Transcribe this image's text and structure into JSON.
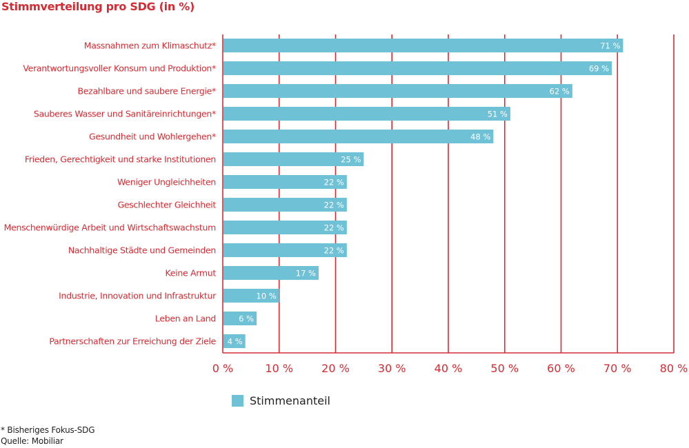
{
  "chart_data": {
    "type": "bar",
    "orientation": "horizontal",
    "title": "Stimmverteilung pro SDG (in %)",
    "categories": [
      "Massnahmen zum Klimaschutz*",
      "Verantwortungsvoller Konsum und Produktion*",
      "Bezahlbare und saubere Energie*",
      "Sauberes Wasser und Sanitäreinrichtungen*",
      "Gesundheit und Wohlergehen*",
      "Frieden, Gerechtigkeit und starke Institutionen",
      "Weniger Ungleichheiten",
      "Geschlechter Gleichheit",
      "Menschenwürdige Arbeit und Wirtschaftswachstum",
      "Nachhaltige Städte und Gemeinden",
      "Keine Armut",
      "Industrie, Innovation und Infrastruktur",
      "Leben an Land",
      "Partnerschaften zur Erreichung der Ziele"
    ],
    "series": [
      {
        "name": "Stimmenanteil",
        "values": [
          71,
          69,
          62,
          51,
          48,
          25,
          22,
          22,
          22,
          22,
          17,
          10,
          6,
          4
        ],
        "color": "#6fc1d6"
      }
    ],
    "data_labels": [
      "71 %",
      "69 %",
      "62 %",
      "51 %",
      "48 %",
      "25 %",
      "22 %",
      "22 %",
      "22 %",
      "22 %",
      "17 %",
      "10 %",
      "6 %",
      "4 %"
    ],
    "xlim": [
      0,
      80
    ],
    "x_ticks": [
      "0 %",
      "10 %",
      "20 %",
      "30 %",
      "40 %",
      "50 %",
      "60 %",
      "70 %",
      "80 %"
    ],
    "grid": true,
    "legend": "bottom-center",
    "axis_color": "#d52b33"
  },
  "footnotes": {
    "note": "* Bisheriges Fokus-SDG",
    "source": "Quelle: Mobiliar"
  }
}
